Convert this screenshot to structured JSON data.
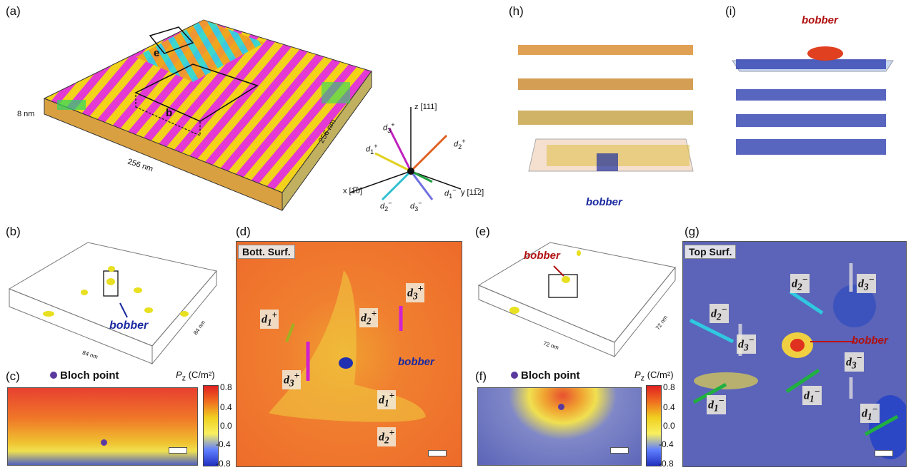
{
  "panels": {
    "a": {
      "label": "(a)",
      "dim_x": "256 nm",
      "dim_y": "256 nm",
      "dim_z": "8 nm",
      "box_b": "b",
      "box_e": "e"
    },
    "axes": {
      "z": "z [111]",
      "x": "x [1̅0]",
      "y": "y [11̅2]",
      "d1p": "d",
      "d2p": "d",
      "d3p": "d",
      "d1m": "d",
      "d2m": "d",
      "d3m": "d"
    },
    "b": {
      "label": "(b)",
      "bobber": "bobber",
      "dim1": "84 nm",
      "dim2": "84 nm"
    },
    "c": {
      "label": "(c)",
      "legend": "Bloch point",
      "pz": "P",
      "pz_unit": "(C/m²)"
    },
    "d": {
      "label": "(d)",
      "tag": "Bott. Surf.",
      "bobber": "bobber"
    },
    "e": {
      "label": "(e)",
      "bobber": "bobber",
      "dim1": "72 nm",
      "dim2": "72 nm"
    },
    "f": {
      "label": "(f)",
      "legend": "Bloch point",
      "pz": "P",
      "pz_unit": "(C/m²)"
    },
    "g": {
      "label": "(g)",
      "tag": "Top Surf.",
      "bobber": "bobber"
    },
    "h": {
      "label": "(h)",
      "bobber": "bobber"
    },
    "i": {
      "label": "(i)",
      "bobber": "bobber"
    }
  },
  "colorbar_ticks": [
    "0.8",
    "0.4",
    "0.0",
    "-0.4",
    "-0.8"
  ],
  "colors": {
    "bobber_blue": "#1a2aa0",
    "bobber_red": "#b01010",
    "orange_bg": "#f07a20",
    "blue_bg": "#5b64b8"
  }
}
